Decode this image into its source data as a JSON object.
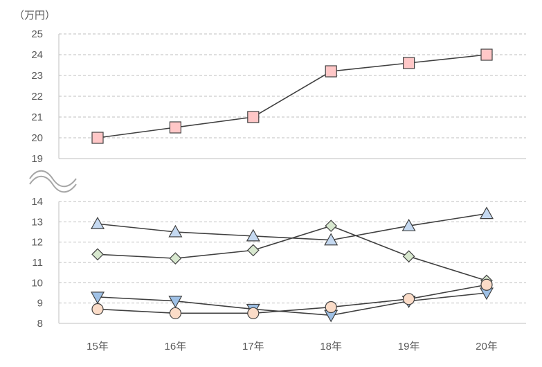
{
  "chart_data": {
    "type": "line",
    "unit_label": "（万円）",
    "categories": [
      "15年",
      "16年",
      "17年",
      "18年",
      "19年",
      "20年"
    ],
    "upper_panel": {
      "ylim": [
        19,
        25
      ],
      "yticks": [
        "25",
        "24",
        "23",
        "22",
        "21",
        "20",
        "19"
      ],
      "series": [
        {
          "marker": "square",
          "color": "#ffc7c7",
          "values": [
            20.0,
            20.5,
            21.0,
            23.2,
            23.6,
            24.0
          ]
        }
      ]
    },
    "lower_panel": {
      "ylim": [
        8,
        14
      ],
      "yticks": [
        "14",
        "13",
        "12",
        "11",
        "10",
        "9",
        "8"
      ],
      "series": [
        {
          "marker": "triangle-up",
          "color": "#c5d9f1",
          "values": [
            12.9,
            12.5,
            12.3,
            12.1,
            12.8,
            13.4
          ]
        },
        {
          "marker": "diamond",
          "color": "#d8e8cf",
          "values": [
            11.4,
            11.2,
            11.6,
            12.8,
            11.3,
            10.1
          ]
        },
        {
          "marker": "triangle-down",
          "color": "#9fc1e6",
          "values": [
            9.3,
            9.1,
            8.7,
            8.4,
            9.1,
            9.5
          ]
        },
        {
          "marker": "circle",
          "color": "#fbdcc8",
          "values": [
            8.7,
            8.5,
            8.5,
            8.8,
            9.2,
            9.9
          ]
        }
      ]
    },
    "axis_break": true,
    "grid": true,
    "legend": "none"
  }
}
